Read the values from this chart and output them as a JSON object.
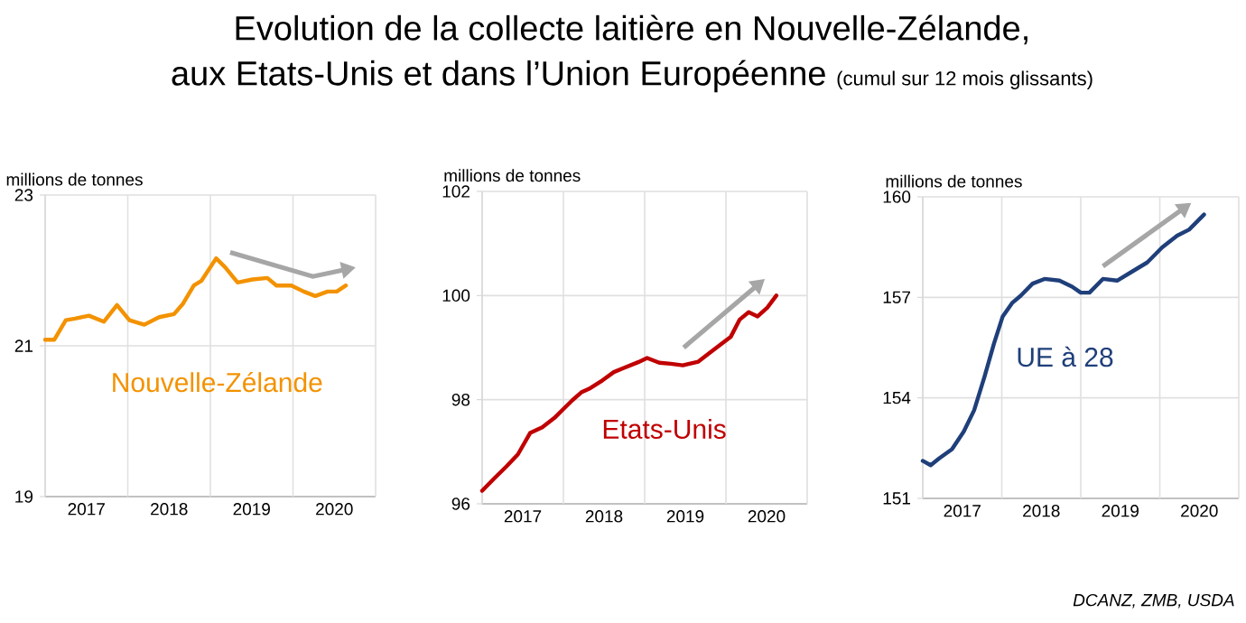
{
  "chart_data": [
    {
      "type": "other",
      "title": "Evolution de la collecte laitière en Nouvelle-Zélande, aux Etats-Unis et dans l’Union Européenne",
      "subtitle": "(cumul sur 12 mois glissants)",
      "annotations": [
        "DCANZ, ZMB, USDA"
      ]
    },
    {
      "type": "line",
      "ylabel": "millions de tonnes",
      "grid": true,
      "xlim": [
        2017,
        2021
      ],
      "ylim": [
        19,
        23
      ],
      "yticks": [
        19,
        21,
        23
      ],
      "xticks": [
        {
          "value": 2017,
          "label": null
        },
        {
          "value": 2017.5,
          "label": "2017"
        },
        {
          "value": 2018,
          "label": null
        },
        {
          "value": 2018.5,
          "label": "2018"
        },
        {
          "value": 2019,
          "label": null
        },
        {
          "value": 2019.5,
          "label": "2019"
        },
        {
          "value": 2020,
          "label": null
        },
        {
          "value": 2020.5,
          "label": "2020"
        },
        {
          "value": 2021,
          "label": null
        }
      ],
      "series": [
        {
          "name": "Nouvelle-Zélande",
          "color": "#f39200",
          "x": [
            2017.0,
            2017.11,
            2017.25,
            2017.36,
            2017.53,
            2017.71,
            2017.87,
            2018.02,
            2018.2,
            2018.38,
            2018.56,
            2018.67,
            2018.8,
            2018.89,
            2019.07,
            2019.18,
            2019.33,
            2019.51,
            2019.69,
            2019.8,
            2019.98,
            2020.13,
            2020.27,
            2020.42,
            2020.53,
            2020.64
          ],
          "values": [
            21.08,
            21.08,
            21.34,
            21.36,
            21.4,
            21.32,
            21.54,
            21.34,
            21.28,
            21.38,
            21.42,
            21.56,
            21.8,
            21.86,
            22.16,
            22.04,
            21.84,
            21.88,
            21.9,
            21.8,
            21.8,
            21.72,
            21.66,
            21.72,
            21.72,
            21.8
          ]
        }
      ]
    },
    {
      "type": "line",
      "ylabel": "millions de tonnes",
      "grid": true,
      "xlim": [
        2017,
        2021
      ],
      "ylim": [
        96,
        102
      ],
      "yticks": [
        96,
        98,
        100,
        102
      ],
      "xticks": [
        {
          "value": 2017,
          "label": null
        },
        {
          "value": 2017.5,
          "label": "2017"
        },
        {
          "value": 2018,
          "label": null
        },
        {
          "value": 2018.5,
          "label": "2018"
        },
        {
          "value": 2019,
          "label": null
        },
        {
          "value": 2019.5,
          "label": "2019"
        },
        {
          "value": 2020,
          "label": null
        },
        {
          "value": 2020.5,
          "label": "2020"
        },
        {
          "value": 2021,
          "label": null
        }
      ],
      "series": [
        {
          "name": "Etats-Unis",
          "color": "#c00000",
          "x": [
            2017.0,
            2017.15,
            2017.3,
            2017.44,
            2017.59,
            2017.74,
            2017.89,
            2018.0,
            2018.11,
            2018.22,
            2018.33,
            2018.48,
            2018.62,
            2018.73,
            2018.92,
            2019.03,
            2019.18,
            2019.32,
            2019.47,
            2019.66,
            2019.8,
            2019.95,
            2020.06,
            2020.17,
            2020.28,
            2020.39,
            2020.51,
            2020.62
          ],
          "values": [
            96.25,
            96.49,
            96.72,
            96.95,
            97.36,
            97.47,
            97.65,
            97.82,
            97.99,
            98.14,
            98.22,
            98.37,
            98.53,
            98.6,
            98.72,
            98.8,
            98.71,
            98.69,
            98.66,
            98.73,
            98.9,
            99.08,
            99.21,
            99.54,
            99.68,
            99.6,
            99.77,
            100.0
          ]
        }
      ]
    },
    {
      "type": "line",
      "ylabel": "millions de tonnes",
      "grid": true,
      "xlim": [
        2017,
        2021
      ],
      "ylim": [
        151,
        160
      ],
      "yticks": [
        151,
        154,
        157,
        160
      ],
      "xticks": [
        {
          "value": 2017,
          "label": null
        },
        {
          "value": 2017.5,
          "label": "2017"
        },
        {
          "value": 2018,
          "label": null
        },
        {
          "value": 2018.5,
          "label": "2018"
        },
        {
          "value": 2019,
          "label": null
        },
        {
          "value": 2019.5,
          "label": "2019"
        },
        {
          "value": 2020,
          "label": null
        },
        {
          "value": 2020.5,
          "label": "2020"
        },
        {
          "value": 2021,
          "label": null
        }
      ],
      "series": [
        {
          "name": "UE à 28",
          "color": "#1f3f7a",
          "x": [
            2017.0,
            2017.1,
            2017.21,
            2017.37,
            2017.52,
            2017.65,
            2017.78,
            2017.9,
            2018.01,
            2018.13,
            2018.24,
            2018.39,
            2018.54,
            2018.73,
            2018.89,
            2019.0,
            2019.11,
            2019.28,
            2019.46,
            2019.65,
            2019.84,
            2020.03,
            2020.22,
            2020.37,
            2020.56
          ],
          "values": [
            152.12,
            151.99,
            152.2,
            152.47,
            153.0,
            153.63,
            154.62,
            155.61,
            156.42,
            156.83,
            157.05,
            157.41,
            157.55,
            157.5,
            157.32,
            157.14,
            157.14,
            157.55,
            157.5,
            157.77,
            158.04,
            158.49,
            158.84,
            159.02,
            159.47
          ]
        }
      ]
    }
  ]
}
